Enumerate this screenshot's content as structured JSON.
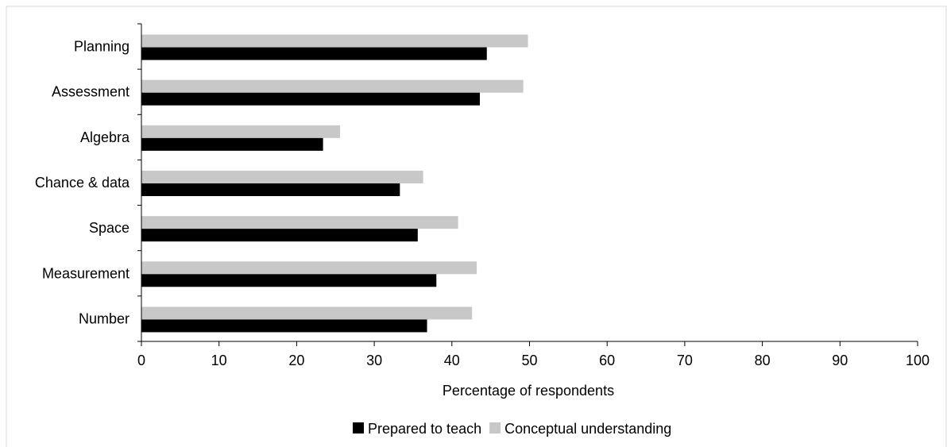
{
  "chart_data": {
    "type": "bar",
    "orientation": "horizontal",
    "categories": [
      "Planning",
      "Assessment",
      "Algebra",
      "Chance & data",
      "Space",
      "Measurement",
      "Number"
    ],
    "series": [
      {
        "name": "Prepared to teach",
        "color": "#000000",
        "values": [
          44.5,
          43.6,
          23.4,
          33.3,
          35.6,
          38.0,
          36.8
        ]
      },
      {
        "name": "Conceptual understanding",
        "color": "#c8c8c8",
        "values": [
          49.8,
          49.2,
          25.6,
          36.3,
          40.8,
          43.2,
          42.6
        ]
      }
    ],
    "xlabel": "Percentage of respondents",
    "ylabel": "",
    "xlim": [
      0,
      100
    ],
    "xticks": [
      0,
      10,
      20,
      30,
      40,
      50,
      60,
      70,
      80,
      90,
      100
    ],
    "grid": false,
    "legend_position": "bottom"
  }
}
